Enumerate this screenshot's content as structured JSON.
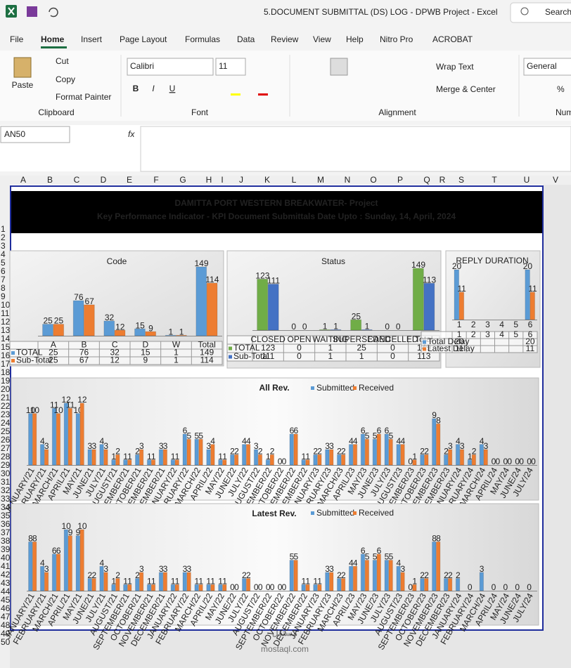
{
  "title_bar": {
    "title": "5.DOCUMENT SUBMITTAL (DS) LOG - DPWB Project - Excel",
    "search": "Search"
  },
  "menu": [
    "File",
    "Home",
    "Insert",
    "Page Layout",
    "Formulas",
    "Data",
    "Review",
    "View",
    "Help",
    "Nitro Pro",
    "ACROBAT"
  ],
  "ribbon": {
    "clipboard": {
      "paste": "Paste",
      "cut": "Cut",
      "copy": "Copy",
      "format_painter": "Format Painter",
      "label": "Clipboard"
    },
    "font": {
      "name": "Calibri",
      "size": "11",
      "bold": "B",
      "italic": "I",
      "underline": "U",
      "label": "Font"
    },
    "alignment": {
      "wrap_text": "Wrap Text",
      "merge_center": "Merge & Center",
      "label": "Alignment"
    },
    "number": {
      "format": "General",
      "percent": "%",
      "label": "Num"
    }
  },
  "formula_bar": {
    "name_box": "AN50",
    "fx": "fx"
  },
  "columns": [
    "A",
    "B",
    "C",
    "D",
    "E",
    "F",
    "G",
    "H",
    "I",
    "J",
    "K",
    "L",
    "M",
    "N",
    "O",
    "P",
    "Q",
    "R",
    "S",
    "T",
    "U",
    "V"
  ],
  "rows": [
    1,
    2,
    3,
    4,
    5,
    6,
    7,
    8,
    9,
    10,
    11,
    12,
    13,
    14,
    15,
    16,
    17,
    18,
    19,
    20,
    21,
    22,
    23,
    24,
    25,
    26,
    27,
    28,
    29,
    30,
    31,
    32,
    33,
    34,
    35,
    36,
    37,
    38,
    39,
    40,
    41,
    42,
    43,
    44,
    45,
    46,
    47,
    48,
    49,
    50
  ],
  "sheet": {
    "header": {
      "line1": "DAMITTA PORT WESTERN BREAKWATER- Project",
      "line2": "Key Performance Indicator - KPI Document Submittals  Date Upto : Sunday, 14, April, 2024"
    }
  },
  "chart_data": [
    {
      "type": "bar",
      "title": "Code",
      "categories": [
        "A",
        "B",
        "C",
        "D",
        "W",
        "Total"
      ],
      "data_table": true,
      "series": [
        {
          "name": "TOTAL",
          "color": "#5b9bd5",
          "values": [
            25,
            76,
            32,
            15,
            1,
            149
          ]
        },
        {
          "name": "Sub-Total",
          "color": "#ed7d31",
          "values": [
            25,
            67,
            12,
            9,
            1,
            114
          ]
        }
      ]
    },
    {
      "type": "bar",
      "title": "Status",
      "categories": [
        "CLOSED",
        "OPEN",
        "WAITING",
        "SUPERSEDED",
        "CANCELLED",
        "Total"
      ],
      "data_table": true,
      "series": [
        {
          "name": "TOTAL",
          "color": "#70ad47",
          "values": [
            123,
            0,
            1,
            25,
            0,
            149
          ]
        },
        {
          "name": "Sub-Total",
          "color": "#4472c4",
          "values": [
            111,
            0,
            1,
            1,
            0,
            113
          ]
        }
      ]
    },
    {
      "type": "bar",
      "title": "REPLY DURATION",
      "categories": [
        "1",
        "2",
        "3",
        "4",
        "5",
        "6"
      ],
      "data_table": true,
      "series": [
        {
          "name": "Total Delay",
          "color": "#5b9bd5",
          "values": [
            20,
            null,
            null,
            null,
            null,
            20
          ]
        },
        {
          "name": "Latest Delay",
          "color": "#ed7d31",
          "values": [
            11,
            null,
            null,
            null,
            null,
            11
          ]
        }
      ]
    },
    {
      "type": "bar",
      "title": "All Rev.",
      "legend": "top",
      "categories": [
        "JANUARY/21",
        "FEBRUARY/21",
        "MARCH/21",
        "APRIL/21",
        "MAY/21",
        "JUNE/21",
        "JULY/21",
        "AUGUST/21",
        "SEPTEMBER/21",
        "OCTOBER/21",
        "NOVEMBER/21",
        "DECEMBER/21",
        "JANUARY/22",
        "FEBRUARY/22",
        "MARCH/22",
        "APRIL/22",
        "MAY/22",
        "JUNE/22",
        "JULY/22",
        "AUGUST/22",
        "SEPTEMBER/22",
        "OCTOBER/22",
        "NOVEMBER/22",
        "DECEMBER/22",
        "JANUARY/23",
        "FEBRUARY/23",
        "MARCH/23",
        "APRIL/23",
        "MAY/23",
        "JUNE/23",
        "JULY/23",
        "AUGUST/23",
        "SEPTEMBER/23",
        "OCTOBER/23",
        "NOVEMBER/23",
        "DECEMBER/23",
        "JANUARY/24",
        "FEBRUARY/24",
        "MARCH/24",
        "APRIL/24",
        "MAY/24",
        "JUNE/24",
        "JULY/24"
      ],
      "series": [
        {
          "name": "Submitted",
          "color": "#5b9bd5",
          "values": [
            10,
            4,
            11,
            12,
            10,
            3,
            4,
            1,
            1,
            2,
            1,
            3,
            1,
            6,
            5,
            3,
            1,
            2,
            4,
            3,
            1,
            0,
            6,
            1,
            2,
            3,
            2,
            4,
            6,
            5,
            6,
            4,
            0,
            2,
            9,
            2,
            4,
            1,
            4,
            0,
            0,
            0,
            0
          ]
        },
        {
          "name": "Received",
          "color": "#ed7d31",
          "values": [
            10,
            3,
            10,
            11,
            12,
            3,
            3,
            2,
            1,
            3,
            1,
            3,
            1,
            5,
            5,
            4,
            1,
            2,
            4,
            2,
            2,
            0,
            6,
            1,
            2,
            3,
            2,
            4,
            5,
            6,
            5,
            4,
            1,
            2,
            8,
            3,
            3,
            2,
            3,
            0,
            0,
            0,
            0
          ]
        }
      ]
    },
    {
      "type": "bar",
      "title": "Latest Rev.",
      "legend": "top",
      "categories": [
        "JANUARY/21",
        "FEBRUARY/21",
        "MARCH/21",
        "APRIL/21",
        "MAY/21",
        "JUNE/21",
        "JULY/21",
        "AUGUST/21",
        "SEPTEMBER/21",
        "OCTOBER/21",
        "NOVEMBER/21",
        "DECEMBER/21",
        "JANUARY/22",
        "FEBRUARY/22",
        "MARCH/22",
        "APRIL/22",
        "MAY/22",
        "JUNE/22",
        "JULY/22",
        "AUGUST/22",
        "SEPTEMBER/22",
        "OCTOBER/22",
        "NOVEMBER/22",
        "DECEMBER/22",
        "JANUARY/23",
        "FEBRUARY/23",
        "MARCH/23",
        "APRIL/23",
        "MAY/23",
        "JUNE/23",
        "JULY/23",
        "AUGUST/23",
        "SEPTEMBER/23",
        "OCTOBER/23",
        "NOVEMBER/23",
        "DECEMBER/23",
        "JANUARY/24",
        "FEBRUARY/24",
        "MARCH/24",
        "APRIL/24",
        "MAY/24",
        "JUNE/24",
        "JULY/24"
      ],
      "series": [
        {
          "name": "Submitted",
          "color": "#5b9bd5",
          "values": [
            8,
            4,
            6,
            10,
            9,
            2,
            4,
            1,
            1,
            2,
            1,
            3,
            1,
            3,
            1,
            1,
            1,
            0,
            2,
            0,
            0,
            0,
            5,
            1,
            1,
            3,
            2,
            4,
            6,
            5,
            5,
            4,
            0,
            2,
            8,
            2,
            2,
            0,
            3,
            0,
            0,
            0,
            0
          ]
        },
        {
          "name": "Received",
          "color": "#ed7d31",
          "values": [
            8,
            3,
            6,
            9,
            10,
            2,
            3,
            2,
            1,
            3,
            1,
            3,
            1,
            3,
            1,
            1,
            1,
            0,
            2,
            0,
            0,
            0,
            5,
            1,
            1,
            3,
            2,
            4,
            5,
            6,
            5,
            3,
            1,
            2,
            8,
            2,
            null,
            null,
            null,
            null,
            null,
            null,
            null
          ]
        }
      ]
    }
  ],
  "watermark": {
    "arabic": "مستقل",
    "latin": "mostaql.com"
  }
}
